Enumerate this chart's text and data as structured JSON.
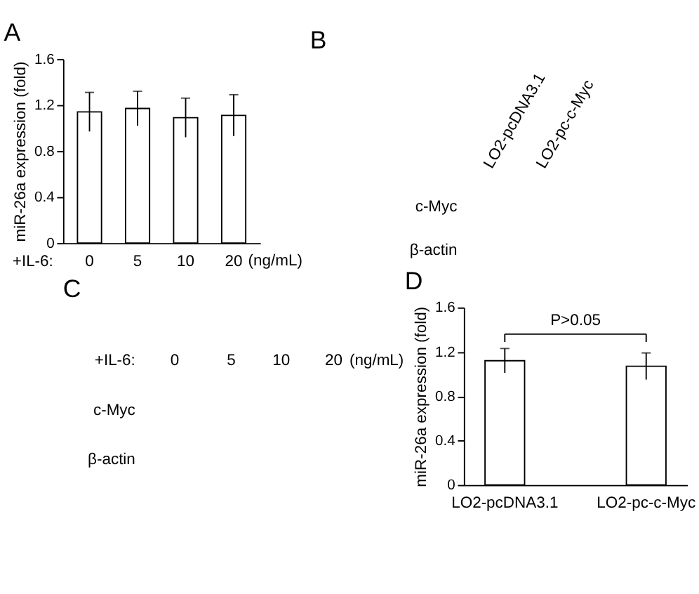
{
  "chart_data": [
    {
      "type": "bar",
      "title": "A",
      "ylabel": "miR-26a expression (fold)",
      "xlabel": "+IL-6:",
      "categories": [
        "0",
        "5",
        "10",
        "20"
      ],
      "values": [
        1.14,
        1.17,
        1.09,
        1.11
      ],
      "errors": [
        0.17,
        0.15,
        0.17,
        0.18
      ],
      "color": "#ffffff",
      "ylim": [
        0,
        1.6
      ],
      "yticks": [
        0,
        0.4,
        0.8,
        1.2,
        1.6
      ],
      "grid": false,
      "annotations": [
        "(ng/mL)"
      ]
    },
    {
      "type": "other",
      "title": "B",
      "categories": [
        "LO2-pcDNA3.1",
        "LO2-pc-c-Myc"
      ],
      "y_categories": [
        "c-Myc",
        "β-actin"
      ]
    },
    {
      "type": "other",
      "title": "C",
      "xlabel": "+IL-6:",
      "categories": [
        "0",
        "5",
        "10",
        "20"
      ],
      "y_categories": [
        "c-Myc",
        "β-actin"
      ],
      "annotations": [
        "(ng/mL)"
      ]
    },
    {
      "type": "bar",
      "title": "D",
      "ylabel": "miR-26a expression (fold)",
      "categories": [
        "LO2-pcDNA3.1",
        "LO2-pc-c-Myc"
      ],
      "values": [
        1.12,
        1.07
      ],
      "errors": [
        0.11,
        0.12
      ],
      "color": "#ffffff",
      "ylim": [
        0,
        1.6
      ],
      "yticks": [
        0,
        0.4,
        0.8,
        1.2,
        1.6
      ],
      "grid": false,
      "annotations": [
        "P>0.05"
      ]
    }
  ]
}
